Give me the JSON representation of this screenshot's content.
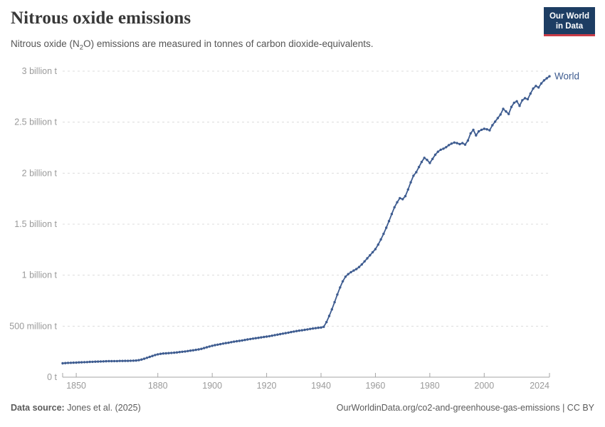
{
  "header": {
    "title": "Nitrous oxide emissions",
    "subtitle_pre": "Nitrous oxide (N",
    "subtitle_sub": "2",
    "subtitle_post": "O) emissions are measured in tonnes of carbon dioxide-equivalents.",
    "logo": {
      "line1": "Our World",
      "line2": "in Data",
      "bg_color": "#1d3d63",
      "bar_color": "#c93c47"
    }
  },
  "footer": {
    "source_label": "Data source:",
    "source_value": " Jones et al. (2025)",
    "credit": "OurWorldinData.org/co2-and-greenhouse-gas-emissions | CC BY"
  },
  "chart_data": {
    "type": "line",
    "title": "Nitrous oxide emissions",
    "value_unit": "tonnes of carbon dioxide-equivalents",
    "value_scale": "million tonnes",
    "xlim": [
      1845,
      2024
    ],
    "ylim": [
      0,
      3000
    ],
    "grid": "horizontal-dashed",
    "grid_color": "#dcdcdc",
    "axis_color": "#a5a5a5",
    "tick_label_color": "#9a9a9a",
    "x_ticks": [
      1850,
      1880,
      1900,
      1920,
      1940,
      1960,
      1980,
      2000,
      2024
    ],
    "y_ticks": [
      {
        "value": 0,
        "label": "0 t"
      },
      {
        "value": 500,
        "label": "500 million t"
      },
      {
        "value": 1000,
        "label": "1 billion t"
      },
      {
        "value": 1500,
        "label": "1.5 billion t"
      },
      {
        "value": 2000,
        "label": "2 billion t"
      },
      {
        "value": 2500,
        "label": "2.5 billion t"
      },
      {
        "value": 3000,
        "label": "3 billion t"
      }
    ],
    "legend_position": "end-of-line",
    "series": [
      {
        "name": "World",
        "color": "#3e5c90",
        "points": [
          [
            1845,
            136
          ],
          [
            1846,
            138
          ],
          [
            1847,
            140
          ],
          [
            1848,
            141
          ],
          [
            1849,
            142
          ],
          [
            1850,
            143
          ],
          [
            1851,
            145
          ],
          [
            1852,
            146
          ],
          [
            1853,
            147
          ],
          [
            1854,
            148
          ],
          [
            1855,
            150
          ],
          [
            1856,
            151
          ],
          [
            1857,
            152
          ],
          [
            1858,
            153
          ],
          [
            1859,
            154
          ],
          [
            1860,
            155
          ],
          [
            1861,
            156
          ],
          [
            1862,
            157
          ],
          [
            1863,
            157
          ],
          [
            1864,
            158
          ],
          [
            1865,
            158
          ],
          [
            1866,
            159
          ],
          [
            1867,
            159
          ],
          [
            1868,
            160
          ],
          [
            1869,
            160
          ],
          [
            1870,
            161
          ],
          [
            1871,
            162
          ],
          [
            1872,
            163
          ],
          [
            1873,
            167
          ],
          [
            1874,
            173
          ],
          [
            1875,
            181
          ],
          [
            1876,
            190
          ],
          [
            1877,
            199
          ],
          [
            1878,
            208
          ],
          [
            1879,
            217
          ],
          [
            1880,
            224
          ],
          [
            1881,
            229
          ],
          [
            1882,
            232
          ],
          [
            1883,
            234
          ],
          [
            1884,
            236
          ],
          [
            1885,
            238
          ],
          [
            1886,
            240
          ],
          [
            1887,
            243
          ],
          [
            1888,
            246
          ],
          [
            1889,
            249
          ],
          [
            1890,
            252
          ],
          [
            1891,
            256
          ],
          [
            1892,
            260
          ],
          [
            1893,
            264
          ],
          [
            1894,
            268
          ],
          [
            1895,
            272
          ],
          [
            1896,
            278
          ],
          [
            1897,
            285
          ],
          [
            1898,
            293
          ],
          [
            1899,
            301
          ],
          [
            1900,
            308
          ],
          [
            1901,
            314
          ],
          [
            1902,
            319
          ],
          [
            1903,
            324
          ],
          [
            1904,
            329
          ],
          [
            1905,
            334
          ],
          [
            1906,
            338
          ],
          [
            1907,
            343
          ],
          [
            1908,
            348
          ],
          [
            1909,
            352
          ],
          [
            1910,
            356
          ],
          [
            1911,
            360
          ],
          [
            1912,
            365
          ],
          [
            1913,
            370
          ],
          [
            1914,
            374
          ],
          [
            1915,
            378
          ],
          [
            1916,
            382
          ],
          [
            1917,
            386
          ],
          [
            1918,
            390
          ],
          [
            1919,
            394
          ],
          [
            1920,
            398
          ],
          [
            1921,
            402
          ],
          [
            1922,
            407
          ],
          [
            1923,
            412
          ],
          [
            1924,
            417
          ],
          [
            1925,
            422
          ],
          [
            1926,
            427
          ],
          [
            1927,
            432
          ],
          [
            1928,
            437
          ],
          [
            1929,
            442
          ],
          [
            1930,
            447
          ],
          [
            1931,
            452
          ],
          [
            1932,
            456
          ],
          [
            1933,
            460
          ],
          [
            1934,
            464
          ],
          [
            1935,
            468
          ],
          [
            1936,
            473
          ],
          [
            1937,
            477
          ],
          [
            1938,
            481
          ],
          [
            1939,
            484
          ],
          [
            1940,
            487
          ],
          [
            1941,
            494
          ],
          [
            1942,
            540
          ],
          [
            1943,
            600
          ],
          [
            1944,
            665
          ],
          [
            1945,
            735
          ],
          [
            1946,
            810
          ],
          [
            1947,
            880
          ],
          [
            1948,
            940
          ],
          [
            1949,
            985
          ],
          [
            1950,
            1010
          ],
          [
            1951,
            1030
          ],
          [
            1952,
            1045
          ],
          [
            1953,
            1060
          ],
          [
            1954,
            1080
          ],
          [
            1955,
            1105
          ],
          [
            1956,
            1135
          ],
          [
            1957,
            1165
          ],
          [
            1958,
            1195
          ],
          [
            1959,
            1225
          ],
          [
            1960,
            1255
          ],
          [
            1961,
            1300
          ],
          [
            1962,
            1350
          ],
          [
            1963,
            1405
          ],
          [
            1964,
            1465
          ],
          [
            1965,
            1530
          ],
          [
            1966,
            1600
          ],
          [
            1967,
            1665
          ],
          [
            1968,
            1715
          ],
          [
            1969,
            1755
          ],
          [
            1970,
            1745
          ],
          [
            1971,
            1775
          ],
          [
            1972,
            1840
          ],
          [
            1973,
            1910
          ],
          [
            1974,
            1975
          ],
          [
            1975,
            2010
          ],
          [
            1976,
            2060
          ],
          [
            1977,
            2110
          ],
          [
            1978,
            2150
          ],
          [
            1979,
            2130
          ],
          [
            1980,
            2100
          ],
          [
            1981,
            2140
          ],
          [
            1982,
            2180
          ],
          [
            1983,
            2210
          ],
          [
            1984,
            2230
          ],
          [
            1985,
            2240
          ],
          [
            1986,
            2255
          ],
          [
            1987,
            2275
          ],
          [
            1988,
            2290
          ],
          [
            1989,
            2300
          ],
          [
            1990,
            2295
          ],
          [
            1991,
            2285
          ],
          [
            1992,
            2295
          ],
          [
            1993,
            2280
          ],
          [
            1994,
            2320
          ],
          [
            1995,
            2390
          ],
          [
            1996,
            2425
          ],
          [
            1997,
            2370
          ],
          [
            1998,
            2410
          ],
          [
            1999,
            2425
          ],
          [
            2000,
            2435
          ],
          [
            2001,
            2430
          ],
          [
            2002,
            2420
          ],
          [
            2003,
            2470
          ],
          [
            2004,
            2505
          ],
          [
            2005,
            2540
          ],
          [
            2006,
            2575
          ],
          [
            2007,
            2630
          ],
          [
            2008,
            2605
          ],
          [
            2009,
            2580
          ],
          [
            2010,
            2650
          ],
          [
            2011,
            2690
          ],
          [
            2012,
            2705
          ],
          [
            2013,
            2660
          ],
          [
            2014,
            2715
          ],
          [
            2015,
            2735
          ],
          [
            2016,
            2725
          ],
          [
            2017,
            2780
          ],
          [
            2018,
            2830
          ],
          [
            2019,
            2855
          ],
          [
            2020,
            2840
          ],
          [
            2021,
            2880
          ],
          [
            2022,
            2910
          ],
          [
            2023,
            2930
          ],
          [
            2024,
            2950
          ]
        ]
      }
    ]
  }
}
